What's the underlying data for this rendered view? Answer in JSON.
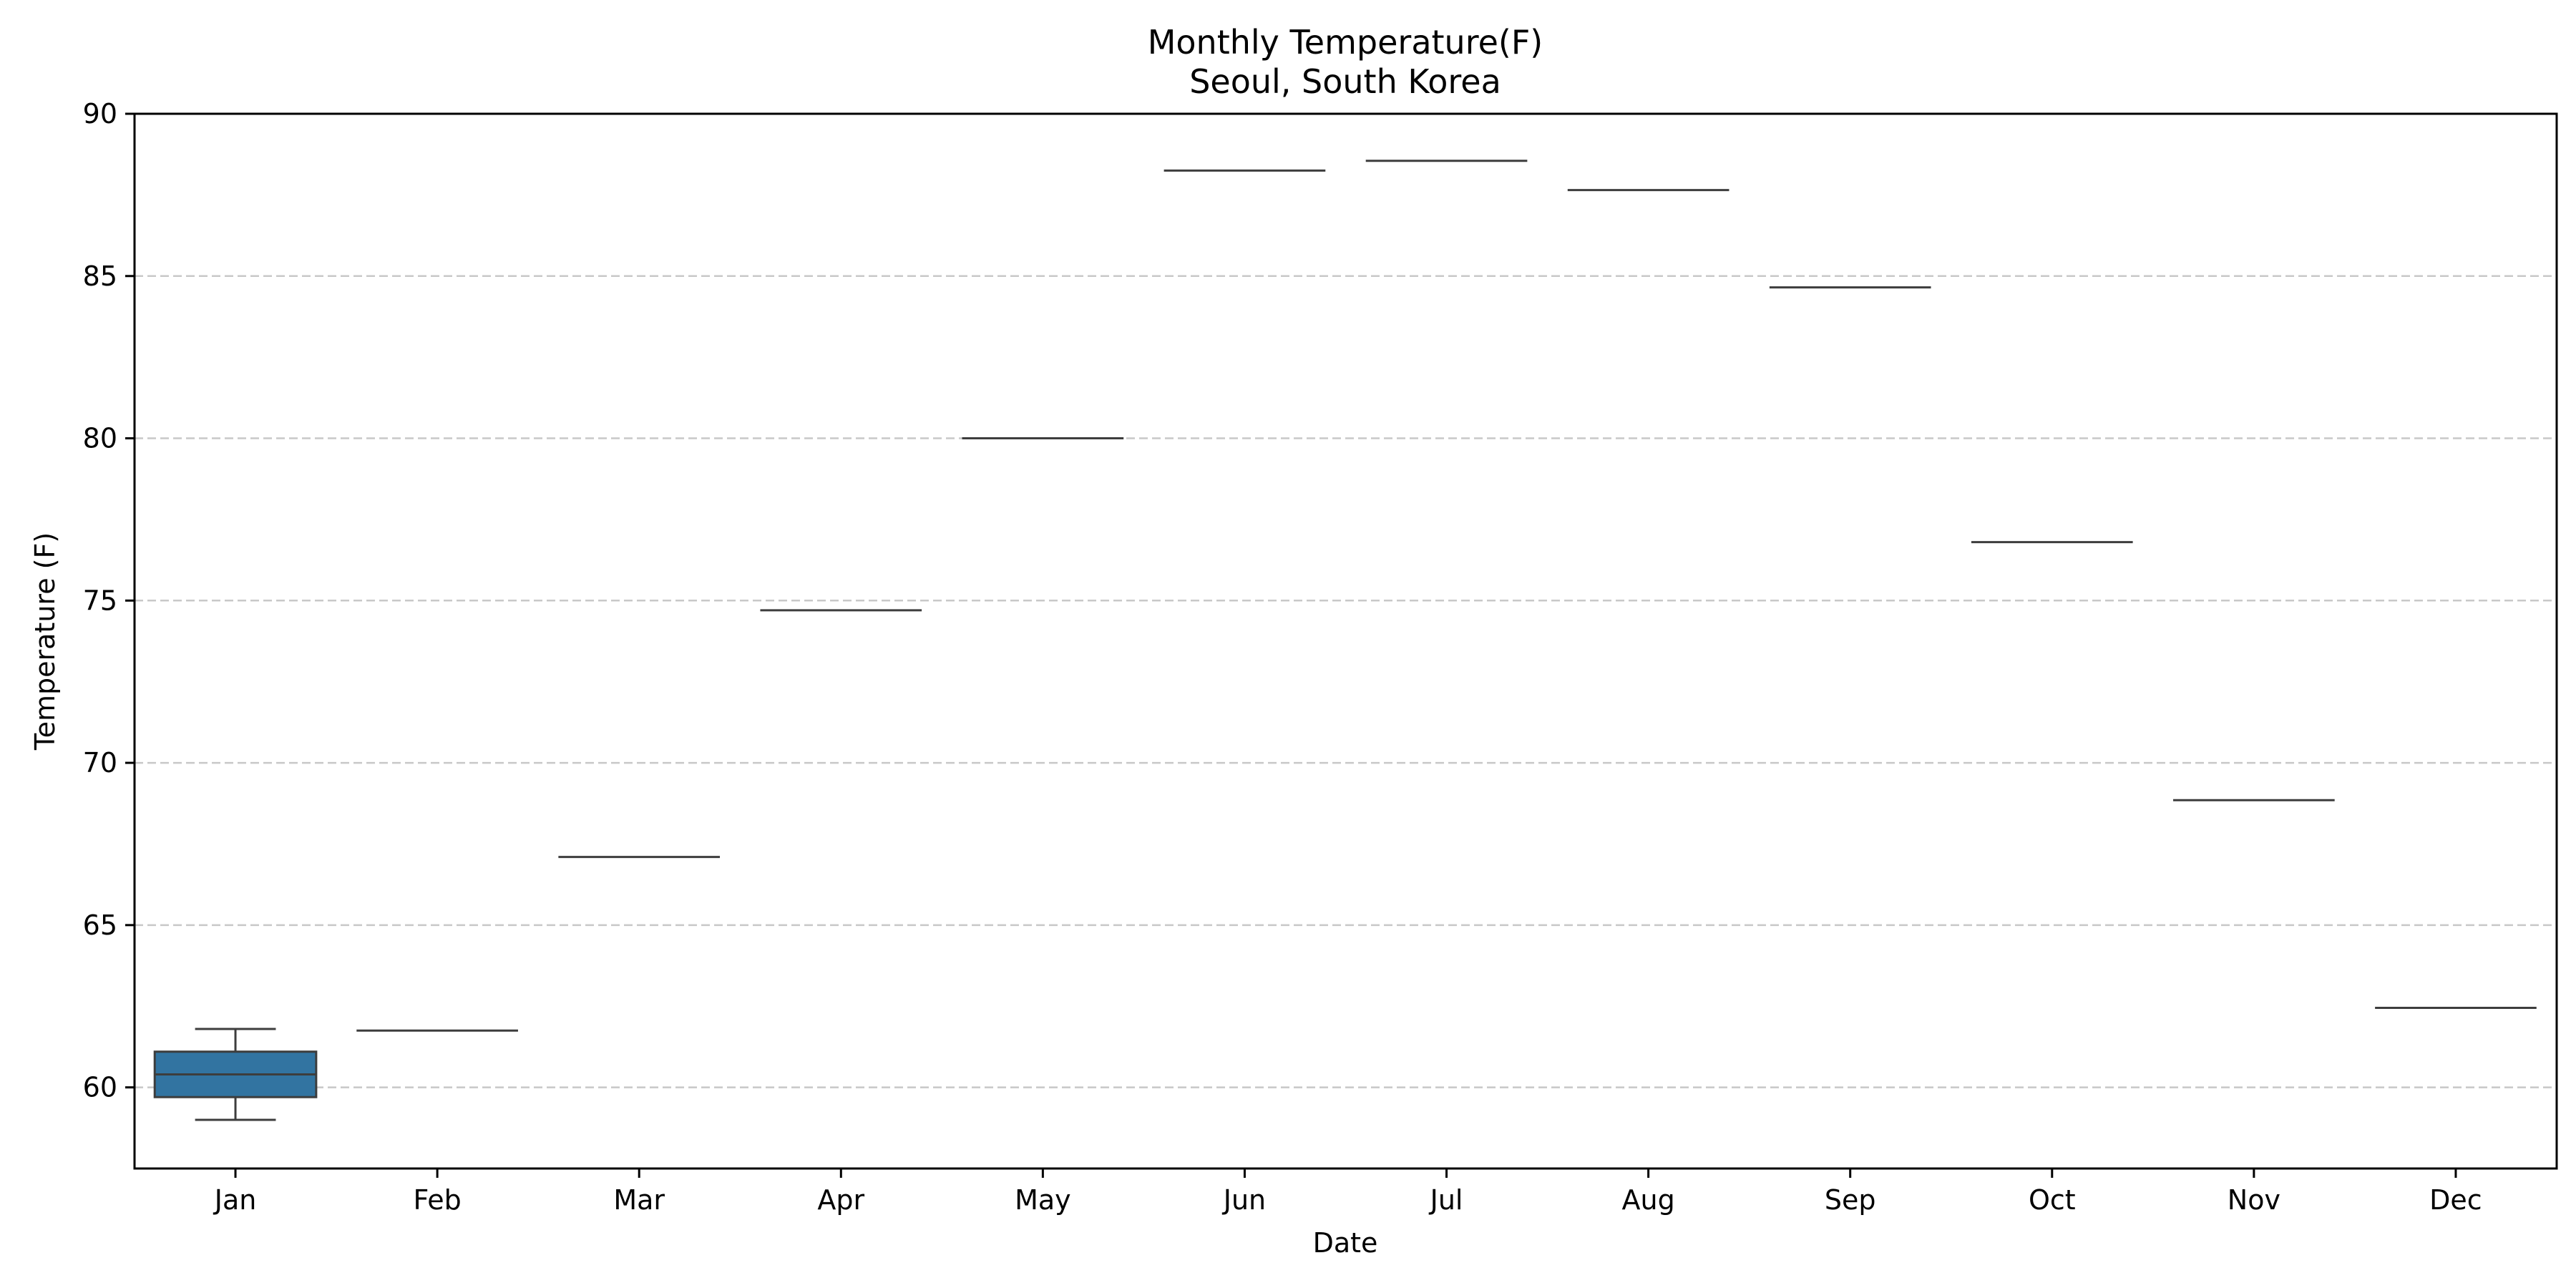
{
  "chart_data": {
    "type": "box",
    "title": "Monthly Temperature(F)",
    "subtitle": "Seoul, South Korea",
    "xlabel": "Date",
    "ylabel": "Temperature (F)",
    "categories": [
      "Jan",
      "Feb",
      "Mar",
      "Apr",
      "May",
      "Jun",
      "Jul",
      "Aug",
      "Sep",
      "Oct",
      "Nov",
      "Dec"
    ],
    "boxes": [
      {
        "whisker_low": 59.0,
        "q1": 59.7,
        "median": 60.4,
        "q3": 61.1,
        "whisker_high": 61.8
      },
      {
        "whisker_low": 61.75,
        "q1": 61.75,
        "median": 61.75,
        "q3": 61.75,
        "whisker_high": 61.75
      },
      {
        "whisker_low": 67.1,
        "q1": 67.1,
        "median": 67.1,
        "q3": 67.1,
        "whisker_high": 67.1
      },
      {
        "whisker_low": 74.7,
        "q1": 74.7,
        "median": 74.7,
        "q3": 74.7,
        "whisker_high": 74.7
      },
      {
        "whisker_low": 80.0,
        "q1": 80.0,
        "median": 80.0,
        "q3": 80.0,
        "whisker_high": 80.0
      },
      {
        "whisker_low": 88.25,
        "q1": 88.25,
        "median": 88.25,
        "q3": 88.25,
        "whisker_high": 88.25
      },
      {
        "whisker_low": 88.55,
        "q1": 88.55,
        "median": 88.55,
        "q3": 88.55,
        "whisker_high": 88.55
      },
      {
        "whisker_low": 87.65,
        "q1": 87.65,
        "median": 87.65,
        "q3": 87.65,
        "whisker_high": 87.65
      },
      {
        "whisker_low": 84.65,
        "q1": 84.65,
        "median": 84.65,
        "q3": 84.65,
        "whisker_high": 84.65
      },
      {
        "whisker_low": 76.8,
        "q1": 76.8,
        "median": 76.8,
        "q3": 76.8,
        "whisker_high": 76.8
      },
      {
        "whisker_low": 68.85,
        "q1": 68.85,
        "median": 68.85,
        "q3": 68.85,
        "whisker_high": 68.85
      },
      {
        "whisker_low": 62.45,
        "q1": 62.45,
        "median": 62.45,
        "q3": 62.45,
        "whisker_high": 62.45
      }
    ],
    "ylim": [
      57.5,
      90
    ],
    "yticks": [
      60,
      65,
      70,
      75,
      80,
      85,
      90
    ],
    "grid": "y-dashed",
    "colors": {
      "box_fill": "#3274a1",
      "box_line": "#3d3d3d",
      "grid": "#c8c8c8",
      "axis": "#000000"
    }
  }
}
